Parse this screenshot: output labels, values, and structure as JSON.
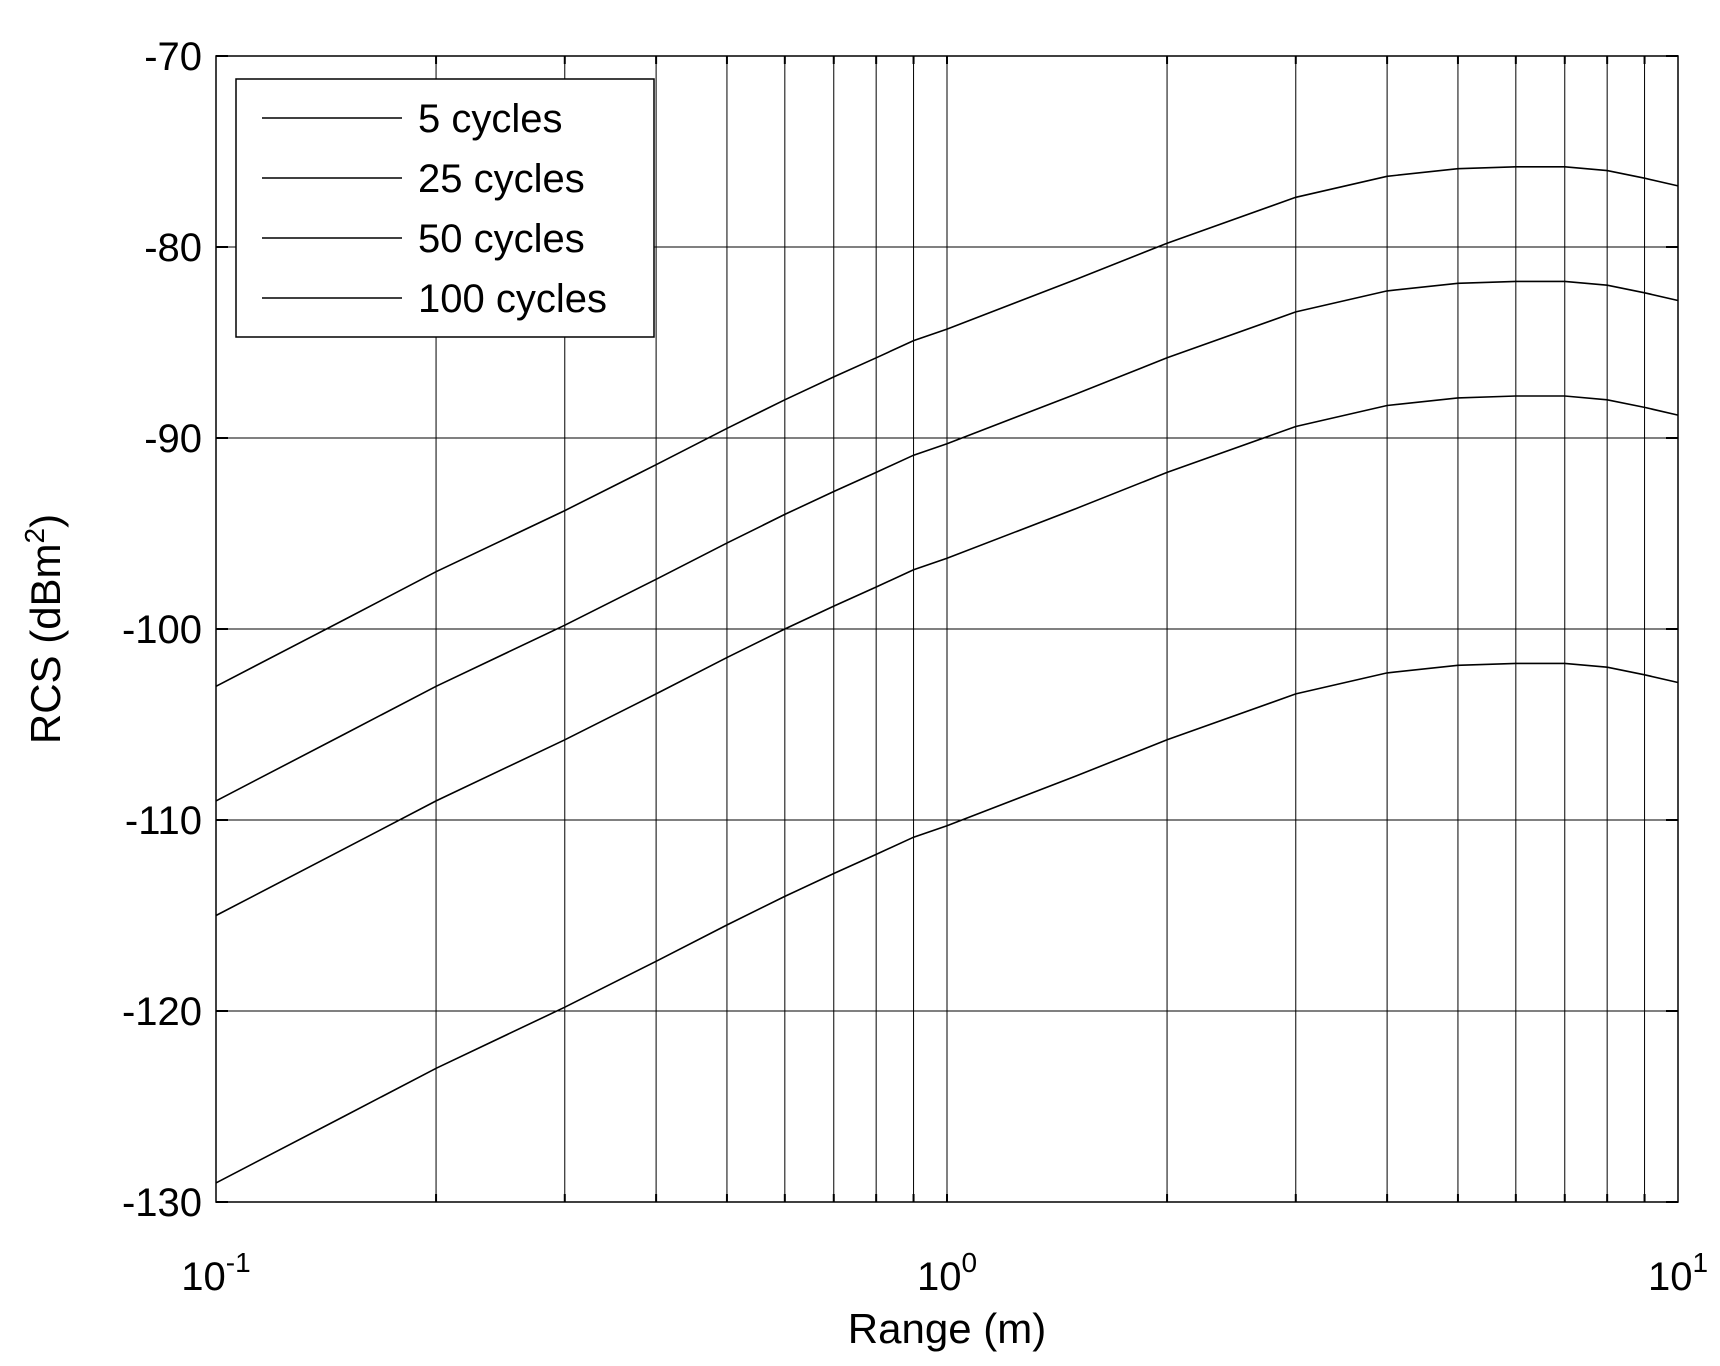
{
  "chart_data": {
    "type": "line",
    "title": "",
    "xlabel": "Range (m)",
    "ylabel": "RCS (dBm",
    "ylabel_superscript": "2",
    "ylabel_close": ")",
    "x_scale": "log",
    "xlim": [
      0.1,
      10
    ],
    "ylim": [
      -130,
      -70
    ],
    "grid": true,
    "legend_position": "top-left",
    "x_ticks": [
      {
        "value": 0.1,
        "base": "10",
        "exp": "-1"
      },
      {
        "value": 1,
        "base": "10",
        "exp": "0"
      },
      {
        "value": 10,
        "base": "10",
        "exp": "1"
      }
    ],
    "y_ticks": [
      -70,
      -80,
      -90,
      -100,
      -110,
      -120,
      -130
    ],
    "line_color": "#000000",
    "series": [
      {
        "name": "5 cycles",
        "x": [
          0.1,
          0.15,
          0.2,
          0.3,
          0.4,
          0.5,
          0.6,
          0.7,
          0.8,
          0.9,
          1.0,
          1.5,
          2.0,
          3.0,
          4.0,
          5.0,
          6.0,
          7.0,
          8.0,
          9.0,
          10.0
        ],
        "y": [
          -103,
          -99.5,
          -97,
          -93.8,
          -91.4,
          -89.5,
          -88.0,
          -86.8,
          -85.8,
          -84.9,
          -84.3,
          -81.7,
          -79.8,
          -77.4,
          -76.3,
          -75.9,
          -75.8,
          -75.8,
          -76.0,
          -76.4,
          -76.8
        ]
      },
      {
        "name": "25 cycles",
        "x": [
          0.1,
          0.15,
          0.2,
          0.3,
          0.4,
          0.5,
          0.6,
          0.7,
          0.8,
          0.9,
          1.0,
          1.5,
          2.0,
          3.0,
          4.0,
          5.0,
          6.0,
          7.0,
          8.0,
          9.0,
          10.0
        ],
        "y": [
          -109,
          -105.5,
          -103,
          -99.8,
          -97.4,
          -95.5,
          -94.0,
          -92.8,
          -91.8,
          -90.9,
          -90.3,
          -87.7,
          -85.8,
          -83.4,
          -82.3,
          -81.9,
          -81.8,
          -81.8,
          -82.0,
          -82.4,
          -82.8
        ]
      },
      {
        "name": "50 cycles",
        "x": [
          0.1,
          0.15,
          0.2,
          0.3,
          0.4,
          0.5,
          0.6,
          0.7,
          0.8,
          0.9,
          1.0,
          1.5,
          2.0,
          3.0,
          4.0,
          5.0,
          6.0,
          7.0,
          8.0,
          9.0,
          10.0
        ],
        "y": [
          -115,
          -111.5,
          -109,
          -105.8,
          -103.4,
          -101.5,
          -100.0,
          -98.8,
          -97.8,
          -96.9,
          -96.3,
          -93.7,
          -91.8,
          -89.4,
          -88.3,
          -87.9,
          -87.8,
          -87.8,
          -88.0,
          -88.4,
          -88.8
        ]
      },
      {
        "name": "100 cycles",
        "x": [
          0.1,
          0.15,
          0.2,
          0.3,
          0.4,
          0.5,
          0.6,
          0.7,
          0.8,
          0.9,
          1.0,
          1.5,
          2.0,
          3.0,
          4.0,
          5.0,
          6.0,
          7.0,
          8.0,
          9.0,
          10.0
        ],
        "y": [
          -129,
          -125.5,
          -123,
          -119.8,
          -117.4,
          -115.5,
          -114.0,
          -112.8,
          -111.8,
          -110.9,
          -110.3,
          -107.7,
          -105.8,
          -103.4,
          -102.3,
          -101.9,
          -101.8,
          -101.8,
          -102.0,
          -102.4,
          -102.8
        ]
      }
    ]
  }
}
